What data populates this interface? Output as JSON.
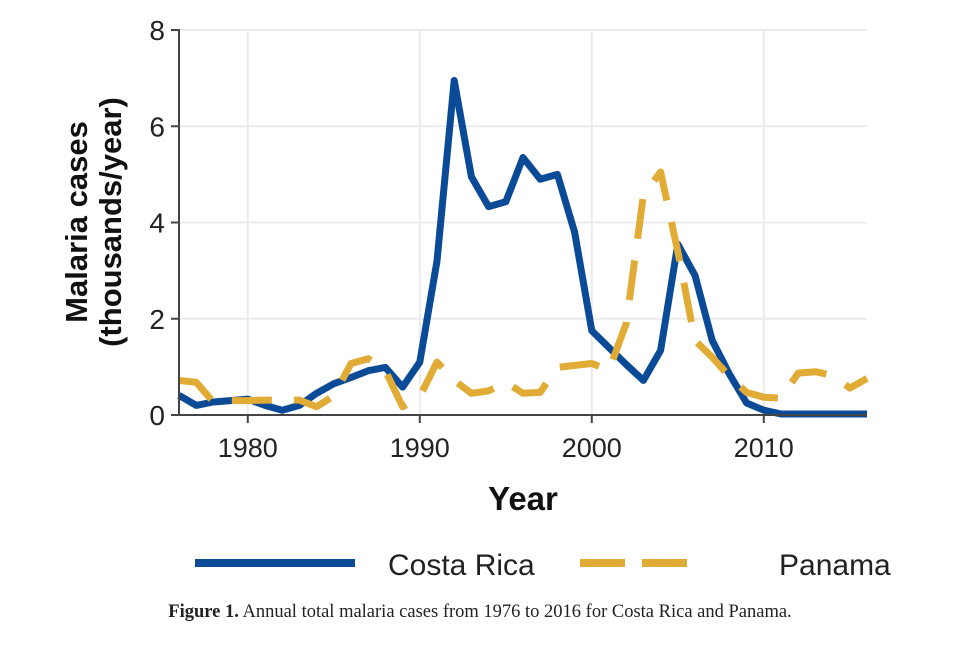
{
  "chart_data": {
    "type": "line",
    "title": "",
    "xlabel": "Year",
    "ylabel": "Malaria cases (thousands/year)",
    "ylabel_lines": [
      "Malaria cases",
      "(thousands/year)"
    ],
    "xlim": [
      1976,
      2016
    ],
    "ylim": [
      0,
      8
    ],
    "xticks": [
      1980,
      1990,
      2000,
      2010
    ],
    "xtick_labels": [
      "1980",
      "1990",
      "2000",
      "2010"
    ],
    "yticks": [
      0,
      2,
      4,
      6,
      8
    ],
    "ytick_labels": [
      "0",
      "2",
      "4",
      "6",
      "8"
    ],
    "grid": true,
    "legend_position": "bottom",
    "x": [
      1976,
      1977,
      1978,
      1979,
      1980,
      1981,
      1982,
      1983,
      1984,
      1985,
      1986,
      1987,
      1988,
      1989,
      1990,
      1991,
      1992,
      1993,
      1994,
      1995,
      1996,
      1997,
      1998,
      1999,
      2000,
      2001,
      2002,
      2003,
      2004,
      2005,
      2006,
      2007,
      2008,
      2009,
      2010,
      2011,
      2012,
      2013,
      2014,
      2015,
      2016
    ],
    "series": [
      {
        "name": "Costa Rica",
        "color": "#0b4a96",
        "dash": "solid",
        "values": [
          0.41,
          0.2,
          0.27,
          0.3,
          0.33,
          0.2,
          0.1,
          0.2,
          0.45,
          0.65,
          0.78,
          0.92,
          0.99,
          0.58,
          1.1,
          3.2,
          6.95,
          4.95,
          4.33,
          4.43,
          5.35,
          4.9,
          5.0,
          3.8,
          1.75,
          1.4,
          1.05,
          0.72,
          1.34,
          3.55,
          2.9,
          1.55,
          0.85,
          0.25,
          0.1,
          0.02,
          0.02,
          0.02,
          0.02,
          0.02,
          0.02
        ]
      },
      {
        "name": "Panama",
        "color": "#e1ac35",
        "dash": "dashed",
        "values": [
          0.72,
          0.68,
          0.27,
          0.3,
          0.3,
          0.31,
          0.31,
          0.31,
          0.17,
          0.4,
          1.07,
          1.17,
          0.92,
          0.17,
          0.38,
          1.1,
          0.72,
          0.45,
          0.5,
          0.68,
          0.45,
          0.47,
          0.99,
          1.03,
          1.07,
          0.93,
          1.9,
          4.57,
          5.05,
          3.4,
          1.55,
          1.2,
          0.8,
          0.47,
          0.37,
          0.35,
          0.87,
          0.9,
          0.82,
          0.56,
          0.76
        ]
      }
    ]
  },
  "caption": {
    "label": "Figure 1.",
    "text": " Annual total malaria cases from 1976 to 2016 for Costa Rica and Panama."
  }
}
